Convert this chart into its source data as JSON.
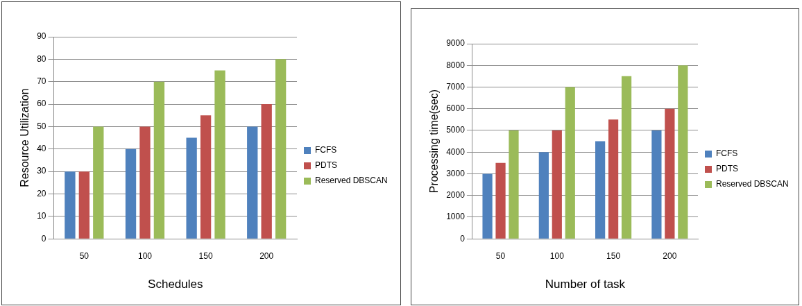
{
  "chart_data": [
    {
      "type": "bar",
      "xlabel": "Schedules",
      "ylabel": "Resource Utilization",
      "categories": [
        "50",
        "100",
        "150",
        "200"
      ],
      "series": [
        {
          "name": "FCFS",
          "color": "#4f81bd",
          "values": [
            30,
            40,
            45,
            50
          ]
        },
        {
          "name": "PDTS",
          "color": "#c0504d",
          "values": [
            30,
            50,
            55,
            60
          ]
        },
        {
          "name": "Reserved DBSCAN",
          "color": "#9bbb59",
          "values": [
            50,
            70,
            75,
            80
          ]
        }
      ],
      "ylim": [
        0,
        90
      ],
      "yticks": [
        0,
        10,
        20,
        30,
        40,
        50,
        60,
        70,
        80,
        90
      ],
      "grid": "y",
      "legend": "right"
    },
    {
      "type": "bar",
      "xlabel": "Number of task",
      "ylabel": "Processing time(sec)",
      "categories": [
        "50",
        "100",
        "150",
        "200"
      ],
      "series": [
        {
          "name": "FCFS",
          "color": "#4f81bd",
          "values": [
            3000,
            4000,
            4500,
            5000
          ]
        },
        {
          "name": "PDTS",
          "color": "#c0504d",
          "values": [
            3500,
            5000,
            5500,
            6000
          ]
        },
        {
          "name": "Reserved DBSCAN",
          "color": "#9bbb59",
          "values": [
            5000,
            7000,
            7500,
            8000
          ]
        }
      ],
      "ylim": [
        0,
        9000
      ],
      "yticks": [
        0,
        1000,
        2000,
        3000,
        4000,
        5000,
        6000,
        7000,
        8000,
        9000
      ],
      "grid": "y",
      "legend": "right"
    }
  ]
}
